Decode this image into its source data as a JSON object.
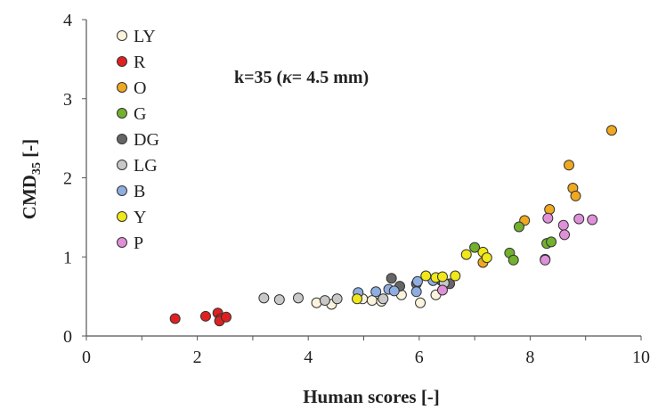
{
  "chart_data": {
    "type": "scatter",
    "xlabel": "Human scores [-]",
    "ylabel_main": "CMD",
    "ylabel_sub": "35",
    "ylabel_suffix": " [-]",
    "annotation_main": "k=35   (",
    "annotation_kappa": "κ",
    "annotation_rest": "= 4.5 mm)",
    "xlim": [
      0,
      10
    ],
    "ylim": [
      0,
      4
    ],
    "x_ticks": [
      0,
      2,
      4,
      6,
      8,
      10
    ],
    "y_ticks": [
      0,
      1,
      2,
      3,
      4
    ],
    "x_tick_labels": [
      "0",
      "2",
      "4",
      "6",
      "8",
      "10"
    ],
    "y_tick_labels": [
      "0",
      "1",
      "2",
      "3",
      "4"
    ],
    "legend_position": "top-left",
    "grid": false,
    "series": [
      {
        "name": "LY",
        "color": "#fbf4dc",
        "points": [
          [
            4.15,
            0.42
          ],
          [
            4.42,
            0.4
          ],
          [
            4.98,
            0.47
          ],
          [
            5.15,
            0.45
          ],
          [
            5.32,
            0.44
          ],
          [
            5.68,
            0.52
          ],
          [
            6.02,
            0.42
          ],
          [
            6.3,
            0.52
          ]
        ]
      },
      {
        "name": "R",
        "color": "#e02020",
        "points": [
          [
            1.6,
            0.22
          ],
          [
            2.15,
            0.25
          ],
          [
            2.37,
            0.29
          ],
          [
            2.42,
            0.22
          ],
          [
            2.4,
            0.19
          ],
          [
            2.52,
            0.24
          ]
        ]
      },
      {
        "name": "O",
        "color": "#f0a820",
        "points": [
          [
            7.15,
            0.93
          ],
          [
            7.9,
            1.46
          ],
          [
            8.35,
            1.6
          ],
          [
            8.7,
            2.16
          ],
          [
            8.77,
            1.87
          ],
          [
            8.82,
            1.77
          ],
          [
            9.47,
            2.6
          ]
        ]
      },
      {
        "name": "G",
        "color": "#72b02e",
        "points": [
          [
            7.0,
            1.12
          ],
          [
            7.63,
            1.05
          ],
          [
            7.7,
            0.96
          ],
          [
            7.8,
            1.38
          ],
          [
            8.3,
            1.17
          ],
          [
            8.38,
            1.19
          ]
        ]
      },
      {
        "name": "DG",
        "color": "#666666",
        "points": [
          [
            5.5,
            0.73
          ],
          [
            5.65,
            0.63
          ],
          [
            5.95,
            0.66
          ],
          [
            6.4,
            0.7
          ],
          [
            6.55,
            0.66
          ],
          [
            8.27,
            0.97
          ]
        ]
      },
      {
        "name": "LG",
        "color": "#c8c8c8",
        "points": [
          [
            3.2,
            0.48
          ],
          [
            3.48,
            0.46
          ],
          [
            3.82,
            0.48
          ],
          [
            4.3,
            0.45
          ],
          [
            4.52,
            0.47
          ],
          [
            5.35,
            0.47
          ],
          [
            6.45,
            0.67
          ]
        ]
      },
      {
        "name": "B",
        "color": "#8eaee0",
        "points": [
          [
            4.9,
            0.55
          ],
          [
            5.22,
            0.56
          ],
          [
            5.45,
            0.59
          ],
          [
            5.55,
            0.57
          ],
          [
            5.95,
            0.56
          ],
          [
            5.97,
            0.69
          ],
          [
            6.25,
            0.7
          ]
        ]
      },
      {
        "name": "Y",
        "color": "#f0e818",
        "points": [
          [
            4.88,
            0.47
          ],
          [
            6.12,
            0.76
          ],
          [
            6.3,
            0.74
          ],
          [
            6.42,
            0.75
          ],
          [
            6.65,
            0.76
          ],
          [
            6.85,
            1.03
          ],
          [
            7.15,
            1.06
          ],
          [
            7.22,
            0.99
          ]
        ]
      },
      {
        "name": "P",
        "color": "#e090d8",
        "points": [
          [
            6.42,
            0.58
          ],
          [
            8.27,
            0.96
          ],
          [
            8.32,
            1.49
          ],
          [
            8.6,
            1.4
          ],
          [
            8.62,
            1.28
          ],
          [
            8.88,
            1.48
          ],
          [
            9.12,
            1.47
          ]
        ]
      }
    ]
  }
}
